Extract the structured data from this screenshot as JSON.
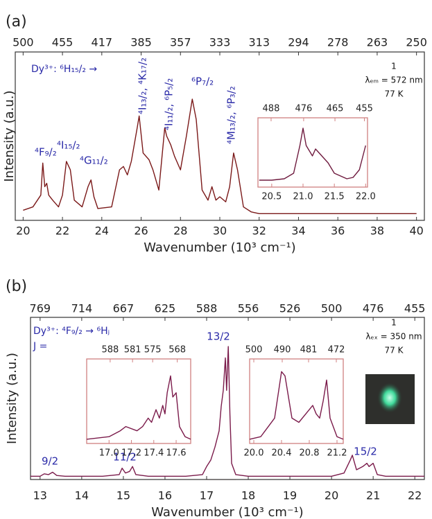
{
  "chart_data": [
    {
      "type": "line",
      "panel_label": "(a)",
      "xlabel": "Wavenumber (10³ cm⁻¹)",
      "ylabel": "Intensity (a.u.)",
      "xlim": [
        19.6,
        40.4
      ],
      "ylim": [
        0,
        1
      ],
      "xticks": [
        20,
        22,
        24,
        26,
        28,
        30,
        32,
        34,
        36,
        38,
        40
      ],
      "x2ticks": [
        {
          "value": 20,
          "label": "500"
        },
        {
          "value": 22,
          "label": "455"
        },
        {
          "value": 24,
          "label": "417"
        },
        {
          "value": 26,
          "label": "385"
        },
        {
          "value": 28,
          "label": "357"
        },
        {
          "value": 30,
          "label": "333"
        },
        {
          "value": 32,
          "label": "313"
        },
        {
          "value": 34,
          "label": "294"
        },
        {
          "value": 36,
          "label": "278"
        },
        {
          "value": 38,
          "label": "263"
        },
        {
          "value": 40,
          "label": "250"
        }
      ],
      "x": [
        20,
        20.5,
        20.9,
        21.0,
        21.1,
        21.2,
        21.3,
        21.5,
        21.8,
        22.0,
        22.2,
        22.4,
        22.6,
        23.0,
        23.3,
        23.45,
        23.6,
        23.8,
        24.5,
        24.9,
        25.1,
        25.3,
        25.5,
        25.8,
        25.9,
        26.1,
        26.4,
        26.6,
        26.9,
        27.2,
        27.3,
        27.5,
        27.7,
        28.0,
        28.3,
        28.6,
        28.8,
        29.1,
        29.4,
        29.6,
        29.8,
        30.0,
        30.3,
        30.5,
        30.7,
        30.9,
        31.2,
        31.6,
        32,
        33,
        34,
        35,
        36,
        37,
        38,
        39,
        40
      ],
      "series": [
        {
          "color": "#7a1818",
          "values": [
            0.06,
            0.08,
            0.15,
            0.34,
            0.2,
            0.22,
            0.15,
            0.12,
            0.08,
            0.15,
            0.35,
            0.3,
            0.12,
            0.08,
            0.2,
            0.24,
            0.14,
            0.07,
            0.08,
            0.3,
            0.32,
            0.27,
            0.35,
            0.55,
            0.62,
            0.4,
            0.36,
            0.3,
            0.18,
            0.55,
            0.5,
            0.45,
            0.38,
            0.3,
            0.5,
            0.72,
            0.6,
            0.18,
            0.12,
            0.2,
            0.12,
            0.14,
            0.11,
            0.2,
            0.4,
            0.3,
            0.08,
            0.05,
            0.04,
            0.04,
            0.04,
            0.04,
            0.04,
            0.04,
            0.04,
            0.04,
            0.04
          ]
        }
      ],
      "annotations": [
        {
          "text": "Dy³⁺: ⁶H₁₅/₂ →",
          "color": "#2a2aa8"
        },
        {
          "text": "⁴F₉/₂",
          "color": "#2a2aa8"
        },
        {
          "text": "⁴I₁₅/₂",
          "color": "#2a2aa8"
        },
        {
          "text": "⁴G₁₁/₂",
          "color": "#2a2aa8"
        },
        {
          "text": "⁴I₁₃/₂, ⁴K₁₇/₂",
          "color": "#2a2aa8"
        },
        {
          "text": "⁴I₁₁/₂, ⁶P₅/₂",
          "color": "#2a2aa8"
        },
        {
          "text": "⁶P₇/₂",
          "color": "#2a2aa8"
        },
        {
          "text": "⁴M₁₃/₂, ⁶P₃/₂",
          "color": "#2a2aa8"
        },
        {
          "text": "1",
          "color": "#111111"
        },
        {
          "text": "λₑₘ = 572 nm",
          "color": "#111111"
        },
        {
          "text": "77 K",
          "color": "#111111"
        }
      ]
    },
    {
      "type": "line",
      "xlim": [
        20.28,
        22.03
      ],
      "ylim": [
        0,
        1
      ],
      "xticks": [
        20.5,
        {
          "value": 21,
          "label": "21.0"
        },
        21.5,
        {
          "value": 22,
          "label": "22.0"
        }
      ],
      "x2ticks": [
        {
          "value": 20.49,
          "label": "488"
        },
        {
          "value": 21.01,
          "label": "476"
        },
        {
          "value": 21.51,
          "label": "465"
        },
        {
          "value": 21.98,
          "label": "455"
        }
      ],
      "x": [
        20.3,
        20.5,
        20.7,
        20.85,
        20.95,
        21.0,
        21.05,
        21.15,
        21.2,
        21.3,
        21.4,
        21.5,
        21.7,
        21.8,
        21.9,
        22.0
      ],
      "series": [
        {
          "color": "#6e1a3e",
          "values": [
            0.1,
            0.1,
            0.12,
            0.2,
            0.6,
            0.85,
            0.6,
            0.45,
            0.55,
            0.45,
            0.35,
            0.2,
            0.12,
            0.14,
            0.25,
            0.6
          ]
        }
      ]
    },
    {
      "type": "line",
      "panel_label": "(b)",
      "xlabel": "Wavenumber (10³ cm⁻¹)",
      "ylabel": "Intensity (a.u.)",
      "xlim": [
        12.77,
        22.23
      ],
      "ylim": [
        0,
        1
      ],
      "xticks": [
        13,
        14,
        15,
        16,
        17,
        18,
        19,
        20,
        21,
        22
      ],
      "x2ticks": [
        {
          "value": 13,
          "label": "769"
        },
        {
          "value": 14,
          "label": "714"
        },
        {
          "value": 15,
          "label": "667"
        },
        {
          "value": 16,
          "label": "625"
        },
        {
          "value": 17,
          "label": "588"
        },
        {
          "value": 18,
          "label": "556"
        },
        {
          "value": 19,
          "label": "526"
        },
        {
          "value": 20,
          "label": "500"
        },
        {
          "value": 21,
          "label": "476"
        },
        {
          "value": 22,
          "label": "455"
        }
      ],
      "x": [
        12.77,
        13.0,
        13.1,
        13.2,
        13.3,
        13.4,
        13.6,
        14.5,
        14.9,
        14.97,
        15.05,
        15.15,
        15.22,
        15.3,
        15.6,
        16.5,
        16.9,
        17.0,
        17.1,
        17.2,
        17.3,
        17.35,
        17.4,
        17.45,
        17.48,
        17.52,
        17.56,
        17.6,
        17.7,
        18,
        19,
        20.0,
        20.3,
        20.45,
        20.5,
        20.6,
        20.75,
        20.85,
        20.9,
        21.0,
        21.1,
        21.3,
        22,
        22.23
      ],
      "series": [
        {
          "color": "#7a1a4a",
          "values": [
            0.02,
            0.02,
            0.035,
            0.03,
            0.045,
            0.025,
            0.02,
            0.02,
            0.03,
            0.07,
            0.04,
            0.05,
            0.08,
            0.03,
            0.02,
            0.02,
            0.03,
            0.08,
            0.12,
            0.2,
            0.3,
            0.45,
            0.55,
            0.75,
            0.55,
            0.82,
            0.4,
            0.1,
            0.03,
            0.02,
            0.02,
            0.02,
            0.04,
            0.12,
            0.15,
            0.06,
            0.08,
            0.1,
            0.08,
            0.1,
            0.03,
            0.02,
            0.02,
            0.02
          ]
        }
      ],
      "annotations": [
        {
          "text": "Dy³⁺: ⁴F₉/₂ → ⁶Hⱼ",
          "color": "#2a2aa8"
        },
        {
          "text": "J =",
          "color": "#2a2aa8"
        },
        {
          "text": "13/2",
          "color": "#2a2aa8"
        },
        {
          "text": "9/2",
          "color": "#2a2aa8"
        },
        {
          "text": "11/2",
          "color": "#2a2aa8"
        },
        {
          "text": "15/2",
          "color": "#2a2aa8"
        },
        {
          "text": "1",
          "color": "#111111"
        },
        {
          "text": "λₑₓ = 350 nm",
          "color": "#111111"
        },
        {
          "text": "77 K",
          "color": "#111111"
        }
      ]
    },
    {
      "type": "line",
      "xlim": [
        16.8,
        17.73
      ],
      "ylim": [
        0,
        1
      ],
      "xticks": [
        {
          "value": 17,
          "label": "17.0"
        },
        17.2,
        17.4,
        17.6
      ],
      "x2ticks": [
        {
          "value": 17.01,
          "label": "588"
        },
        {
          "value": 17.21,
          "label": "581"
        },
        {
          "value": 17.39,
          "label": "575"
        },
        {
          "value": 17.61,
          "label": "568"
        }
      ],
      "x": [
        16.8,
        17.0,
        17.1,
        17.15,
        17.25,
        17.3,
        17.35,
        17.38,
        17.42,
        17.45,
        17.48,
        17.5,
        17.52,
        17.55,
        17.57,
        17.6,
        17.63,
        17.68,
        17.73
      ],
      "series": [
        {
          "color": "#7a1a4a",
          "values": [
            0.05,
            0.08,
            0.15,
            0.2,
            0.15,
            0.2,
            0.3,
            0.25,
            0.4,
            0.3,
            0.45,
            0.35,
            0.6,
            0.8,
            0.55,
            0.6,
            0.2,
            0.08,
            0.05
          ]
        }
      ]
    },
    {
      "type": "line",
      "xlim": [
        19.94,
        21.29
      ],
      "ylim": [
        0,
        1
      ],
      "xticks": [
        {
          "value": 20,
          "label": "20.0"
        },
        20.4,
        20.8,
        21.2
      ],
      "x2ticks": [
        {
          "value": 20.0,
          "label": "500"
        },
        {
          "value": 20.41,
          "label": "490"
        },
        {
          "value": 20.79,
          "label": "481"
        },
        {
          "value": 21.19,
          "label": "472"
        }
      ],
      "x": [
        19.94,
        20.1,
        20.3,
        20.4,
        20.45,
        20.55,
        20.65,
        20.8,
        20.85,
        20.9,
        20.95,
        21.0,
        21.05,
        21.1,
        21.2,
        21.29
      ],
      "series": [
        {
          "color": "#7a1a4a",
          "values": [
            0.05,
            0.08,
            0.3,
            0.85,
            0.8,
            0.3,
            0.25,
            0.4,
            0.45,
            0.35,
            0.3,
            0.5,
            0.75,
            0.3,
            0.08,
            0.05
          ]
        }
      ]
    }
  ]
}
